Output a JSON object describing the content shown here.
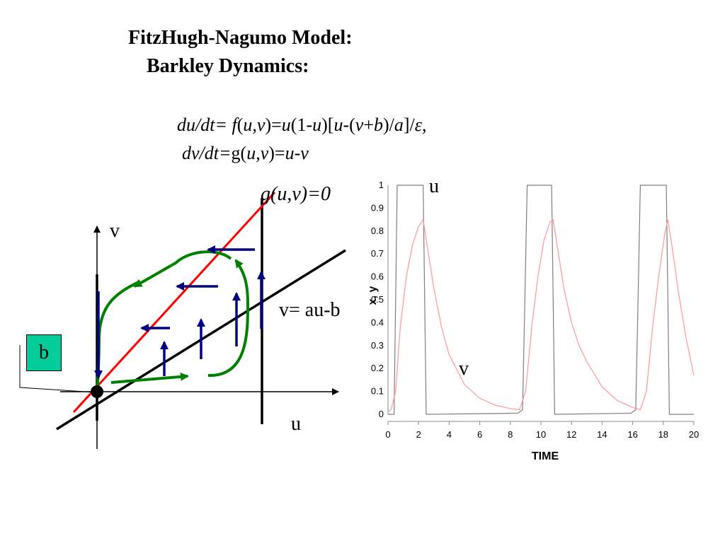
{
  "title": {
    "line1": "FitzHugh-Nagumo  Model:",
    "line2": "Barkley Dynamics:"
  },
  "equations": {
    "eq1_parts": [
      "du/dt= ",
      "f",
      "(",
      "u",
      ",",
      "v",
      ")=",
      "u",
      "(1-",
      "u",
      ")[",
      "u",
      "-(",
      "v",
      "+",
      "b",
      ")/",
      "a",
      "]/",
      "ε",
      ","
    ],
    "eq2_parts": [
      "dv/dt=",
      "g",
      "(",
      "u",
      ",",
      "v",
      ")=",
      "u",
      "-",
      "v"
    ]
  },
  "phase_plane": {
    "nullcline_label": "g(u,v)=0",
    "v_axis_label": "v",
    "u_axis_label": "u",
    "line_label": "v= au-b",
    "b_box_label": "b",
    "colors": {
      "nullcline": "#ff0000",
      "trajectory": "#008000",
      "arrows": "#000080",
      "b_box": "#00cc99"
    }
  },
  "time_plot": {
    "u_label": "u",
    "v_label": "v"
  },
  "chart_data": {
    "type": "line",
    "xlabel": "TIME",
    "ylabel": "x, y",
    "xlim": [
      0,
      20
    ],
    "ylim": [
      0,
      1
    ],
    "x_ticks": [
      "0",
      "2",
      "4",
      "6",
      "8",
      "10",
      "12",
      "14",
      "16",
      "18",
      "20"
    ],
    "y_ticks": [
      "0",
      "0.1",
      "0.2",
      "0.3",
      "0.4",
      "0.5",
      "0.6",
      "0.7",
      "0.8",
      "0.9",
      "1"
    ],
    "series": [
      {
        "name": "u",
        "color": "#7f7f7f",
        "x": [
          0,
          0.4,
          0.5,
          0.6,
          2.3,
          2.4,
          2.5,
          8.5,
          8.8,
          8.95,
          9.1,
          10.7,
          10.8,
          10.9,
          15.9,
          16.2,
          16.35,
          16.5,
          18.2,
          18.3,
          18.4,
          20
        ],
        "y": [
          0,
          0,
          0.5,
          1,
          1,
          0.5,
          0,
          0.005,
          0.02,
          0.5,
          1,
          1,
          0.5,
          0,
          0.005,
          0.02,
          0.5,
          1,
          1,
          0.5,
          0,
          0
        ]
      },
      {
        "name": "v",
        "color": "#ff9999",
        "x": [
          0,
          0.2,
          0.5,
          0.8,
          1.2,
          1.6,
          2.0,
          2.3,
          2.6,
          3.0,
          3.5,
          4.0,
          5.0,
          6.0,
          7.0,
          8.0,
          8.6,
          9.0,
          9.4,
          9.8,
          10.2,
          10.6,
          10.8,
          11.1,
          11.5,
          12.0,
          12.5,
          13.0,
          14.0,
          15.0,
          16.0,
          16.5,
          16.9,
          17.3,
          17.7,
          18.1,
          18.3,
          18.6,
          19.0,
          19.5,
          20
        ],
        "y": [
          0.01,
          0.02,
          0.1,
          0.38,
          0.6,
          0.74,
          0.82,
          0.85,
          0.72,
          0.55,
          0.38,
          0.26,
          0.13,
          0.07,
          0.04,
          0.025,
          0.02,
          0.1,
          0.38,
          0.6,
          0.76,
          0.84,
          0.85,
          0.72,
          0.55,
          0.4,
          0.3,
          0.23,
          0.12,
          0.06,
          0.03,
          0.02,
          0.1,
          0.38,
          0.6,
          0.79,
          0.85,
          0.72,
          0.53,
          0.33,
          0.17
        ]
      }
    ]
  }
}
